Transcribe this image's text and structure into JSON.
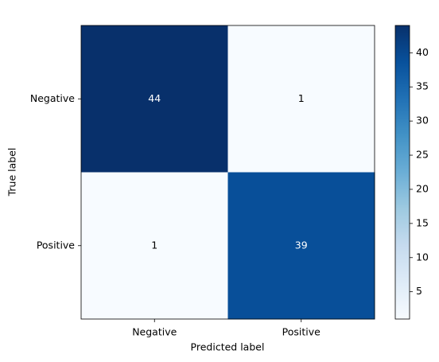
{
  "chart_data": {
    "type": "heatmap",
    "x_categories": [
      "Negative",
      "Positive"
    ],
    "y_categories": [
      "Negative",
      "Positive"
    ],
    "values": [
      [
        44,
        1
      ],
      [
        1,
        39
      ]
    ],
    "xlabel": "Predicted label",
    "ylabel": "True label",
    "colormap": "Blues",
    "clim": [
      1,
      44
    ],
    "cticks": [
      5,
      10,
      15,
      20,
      25,
      30,
      35,
      40
    ]
  }
}
